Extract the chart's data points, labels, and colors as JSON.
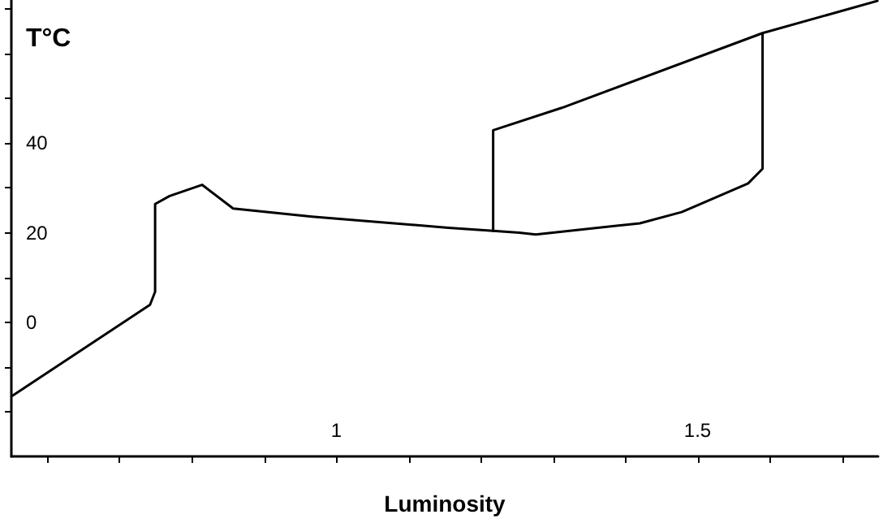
{
  "chart_data": {
    "type": "line",
    "xlabel": "Luminosity",
    "ylabel": "T°C",
    "xlim": [
      0.55,
      1.75
    ],
    "ylim": [
      -30,
      72
    ],
    "xticks": [
      {
        "value": 0.6,
        "label": null
      },
      {
        "value": 0.7,
        "label": null
      },
      {
        "value": 0.8,
        "label": null
      },
      {
        "value": 0.9,
        "label": null
      },
      {
        "value": 1,
        "label": "1"
      },
      {
        "value": 1.1,
        "label": null
      },
      {
        "value": 1.2,
        "label": null
      },
      {
        "value": 1.3,
        "label": null
      },
      {
        "value": 1.4,
        "label": null
      },
      {
        "value": 1.5,
        "label": "1.5"
      },
      {
        "value": 1.6,
        "label": null
      },
      {
        "value": 1.7,
        "label": null
      }
    ],
    "yticks": [
      {
        "value": -20,
        "label": null
      },
      {
        "value": -10,
        "label": null
      },
      0,
      {
        "value": 10,
        "label": null
      },
      20,
      {
        "value": 30,
        "label": null
      },
      40,
      {
        "value": 50,
        "label": null
      },
      {
        "value": 60,
        "label": null
      },
      {
        "value": 70,
        "label": null
      }
    ],
    "grid": false,
    "marker": "none",
    "line_style": "solid",
    "series": [
      {
        "color": "#000000",
        "x": [
          0.552,
          0.742,
          0.749,
          0.749,
          0.769,
          0.814,
          0.857,
          0.966,
          1.155,
          1.217,
          1.253,
          1.276,
          1.42,
          1.478,
          1.57,
          1.59,
          1.59,
          1.749
        ],
        "values": [
          -16.4,
          3.9,
          6.8,
          26.4,
          28.2,
          30.7,
          25.4,
          23.6,
          21.1,
          20.4,
          20,
          19.6,
          22.1,
          24.6,
          31,
          34.3,
          64.6,
          71.8
        ]
      },
      {
        "color": "#000000",
        "x": [
          1.217,
          1.217,
          1.312,
          1.59
        ],
        "values": [
          20.4,
          42.9,
          47.9,
          64.6
        ]
      }
    ]
  }
}
